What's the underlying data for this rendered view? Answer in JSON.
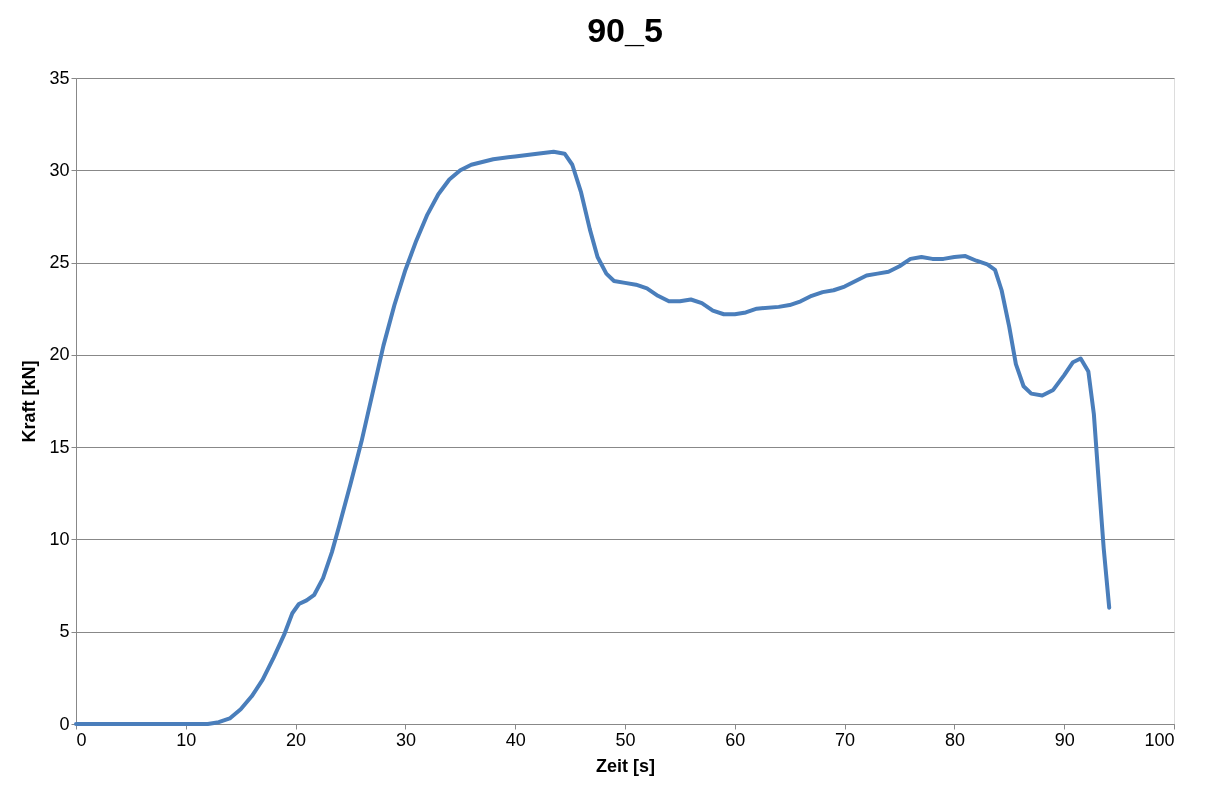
{
  "chart_data": {
    "type": "line",
    "title": "90_5",
    "xlabel": "Zeit [s]",
    "ylabel": "Kraft [kN]",
    "xlim": [
      0,
      100
    ],
    "xticks": [
      0,
      10,
      20,
      30,
      40,
      50,
      60,
      70,
      80,
      90,
      100
    ],
    "ylim": [
      0,
      35
    ],
    "yticks": [
      0,
      5,
      10,
      15,
      20,
      25,
      30,
      35
    ],
    "grid": "y",
    "marker": "none",
    "line_style": "solid",
    "series": [
      {
        "color": "#4a7ebb",
        "x": [
          0,
          7,
          12,
          13,
          14,
          15,
          16,
          17,
          18,
          19,
          19.7,
          20.3,
          21,
          21.7,
          22.5,
          23.3,
          24,
          25,
          26,
          27,
          28,
          29,
          30,
          31,
          32,
          33,
          34,
          35,
          36,
          38,
          40,
          42,
          43.5,
          44.5,
          45.2,
          46,
          46.8,
          47.5,
          48.3,
          49,
          50,
          51,
          52,
          53,
          54,
          55,
          56,
          57,
          58,
          59,
          60,
          61,
          62,
          64,
          65,
          66,
          67,
          68,
          69,
          70,
          71,
          72,
          73,
          74,
          75,
          76,
          77,
          78,
          79,
          80,
          81,
          82,
          83,
          83.7,
          84.3,
          85,
          85.6,
          86.3,
          87,
          88,
          89,
          90,
          90.8,
          91.5,
          92.2,
          92.7,
          93.1,
          93.6,
          94.1
        ],
        "values": [
          0,
          0,
          0,
          0.1,
          0.3,
          0.8,
          1.5,
          2.4,
          3.6,
          4.9,
          6.0,
          6.5,
          6.7,
          7.0,
          7.9,
          9.3,
          10.8,
          13.0,
          15.3,
          17.9,
          20.5,
          22.7,
          24.6,
          26.2,
          27.6,
          28.7,
          29.5,
          30.0,
          30.3,
          30.6,
          30.75,
          30.9,
          31.0,
          30.9,
          30.3,
          28.8,
          26.8,
          25.3,
          24.4,
          24.0,
          23.9,
          23.8,
          23.6,
          23.2,
          22.9,
          22.9,
          23.0,
          22.8,
          22.4,
          22.2,
          22.2,
          22.3,
          22.5,
          22.6,
          22.7,
          22.9,
          23.2,
          23.4,
          23.5,
          23.7,
          24.0,
          24.3,
          24.4,
          24.5,
          24.8,
          25.2,
          25.3,
          25.2,
          25.2,
          25.3,
          25.35,
          25.1,
          24.9,
          24.6,
          23.5,
          21.5,
          19.5,
          18.3,
          17.9,
          17.8,
          18.1,
          18.9,
          19.6,
          19.8,
          19.1,
          16.8,
          13.5,
          9.5,
          6.3
        ]
      }
    ]
  }
}
